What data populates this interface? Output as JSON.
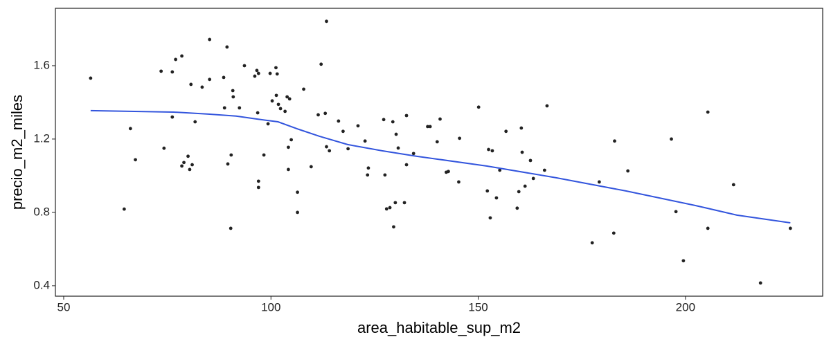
{
  "chart_data": {
    "type": "scatter",
    "x_label": "area_habitable_sup_m2",
    "y_label": "precio_m2_miles",
    "xlim": [
      48.0,
      233.1
    ],
    "ylim": [
      0.343,
      1.913
    ],
    "xticks": [
      50,
      100,
      150,
      200
    ],
    "yticks": [
      {
        "value": 0.4,
        "label": "0.4"
      },
      {
        "value": 0.8,
        "label": "0.8"
      },
      {
        "value": 1.2,
        "label": "1.2"
      },
      {
        "value": 1.6,
        "label": "1.6"
      }
    ],
    "grid": false,
    "point_color": "#222222",
    "x": [
      56.5,
      64.6,
      66.1,
      67.3,
      73.5,
      74.2,
      76.2,
      76.2,
      77.0,
      78.5,
      78.5,
      79.0,
      80.0,
      80.4,
      80.7,
      81.0,
      81.7,
      83.4,
      85.2,
      85.2,
      88.6,
      88.8,
      89.4,
      89.6,
      90.3,
      90.4,
      90.8,
      90.9,
      92.4,
      93.6,
      96.1,
      96.6,
      97.0,
      96.8,
      97.0,
      97.0,
      98.3,
      99.3,
      99.8,
      100.3,
      101.2,
      101.3,
      101.5,
      101.8,
      102.3,
      103.4,
      103.9,
      104.5,
      104.2,
      104.2,
      104.9,
      106.4,
      106.4,
      107.9,
      109.7,
      111.4,
      112.1,
      113.1,
      113.4,
      113.4,
      114.1,
      116.3,
      117.4,
      118.6,
      121.0,
      122.7,
      123.5,
      123.3,
      127.2,
      127.5,
      127.9,
      128.7,
      129.4,
      129.6,
      130.0,
      130.2,
      130.7,
      132.2,
      132.7,
      132.7,
      134.4,
      137.8,
      138.4,
      140.1,
      140.8,
      142.3,
      142.8,
      145.3,
      145.5,
      150.1,
      152.2,
      152.5,
      152.9,
      153.4,
      154.4,
      155.2,
      156.7,
      159.4,
      159.8,
      160.4,
      160.6,
      161.3,
      162.6,
      163.3,
      166.0,
      166.6,
      177.5,
      179.2,
      182.7,
      182.9,
      186.1,
      196.6,
      197.7,
      199.5,
      205.4,
      205.4,
      211.6,
      218.1,
      225.3
    ],
    "values": [
      1.532,
      0.818,
      1.257,
      1.087,
      1.57,
      1.15,
      1.566,
      1.32,
      1.634,
      1.653,
      1.053,
      1.072,
      1.106,
      1.034,
      1.498,
      1.06,
      1.294,
      1.483,
      1.525,
      1.743,
      1.536,
      1.37,
      1.702,
      1.064,
      0.713,
      1.113,
      1.464,
      1.43,
      1.37,
      1.6,
      1.543,
      1.574,
      1.558,
      1.343,
      0.97,
      0.936,
      1.113,
      1.283,
      1.558,
      1.408,
      1.589,
      1.438,
      1.555,
      1.389,
      1.366,
      1.351,
      1.43,
      1.419,
      1.155,
      1.034,
      1.196,
      0.91,
      0.8,
      1.472,
      1.049,
      1.332,
      1.608,
      1.34,
      1.842,
      1.158,
      1.136,
      1.298,
      1.242,
      1.147,
      1.272,
      1.189,
      1.042,
      1.004,
      1.306,
      1.004,
      0.819,
      0.826,
      1.294,
      0.721,
      0.853,
      1.226,
      1.151,
      0.853,
      1.328,
      1.06,
      1.121,
      1.268,
      1.268,
      1.185,
      1.309,
      1.019,
      1.023,
      0.966,
      1.204,
      1.374,
      0.917,
      1.143,
      0.77,
      1.136,
      0.879,
      1.03,
      1.242,
      0.823,
      0.913,
      1.26,
      1.128,
      0.943,
      1.083,
      0.985,
      1.03,
      1.381,
      0.634,
      0.966,
      0.687,
      1.189,
      1.026,
      1.2,
      0.804,
      0.536,
      0.713,
      1.347,
      0.951,
      0.415,
      0.713
    ],
    "smooth_color": "#3355dd",
    "smooth_x": [
      56.5,
      76.5,
      84.9,
      91.6,
      96.6,
      101.7,
      106.7,
      111.7,
      118.5,
      126.8,
      135.2,
      152.0,
      168.8,
      185.6,
      202.3,
      212.4,
      225.3
    ],
    "smooth_values": [
      1.355,
      1.347,
      1.336,
      1.325,
      1.309,
      1.294,
      1.253,
      1.215,
      1.17,
      1.136,
      1.106,
      1.053,
      0.989,
      0.917,
      0.838,
      0.785,
      0.743
    ]
  }
}
